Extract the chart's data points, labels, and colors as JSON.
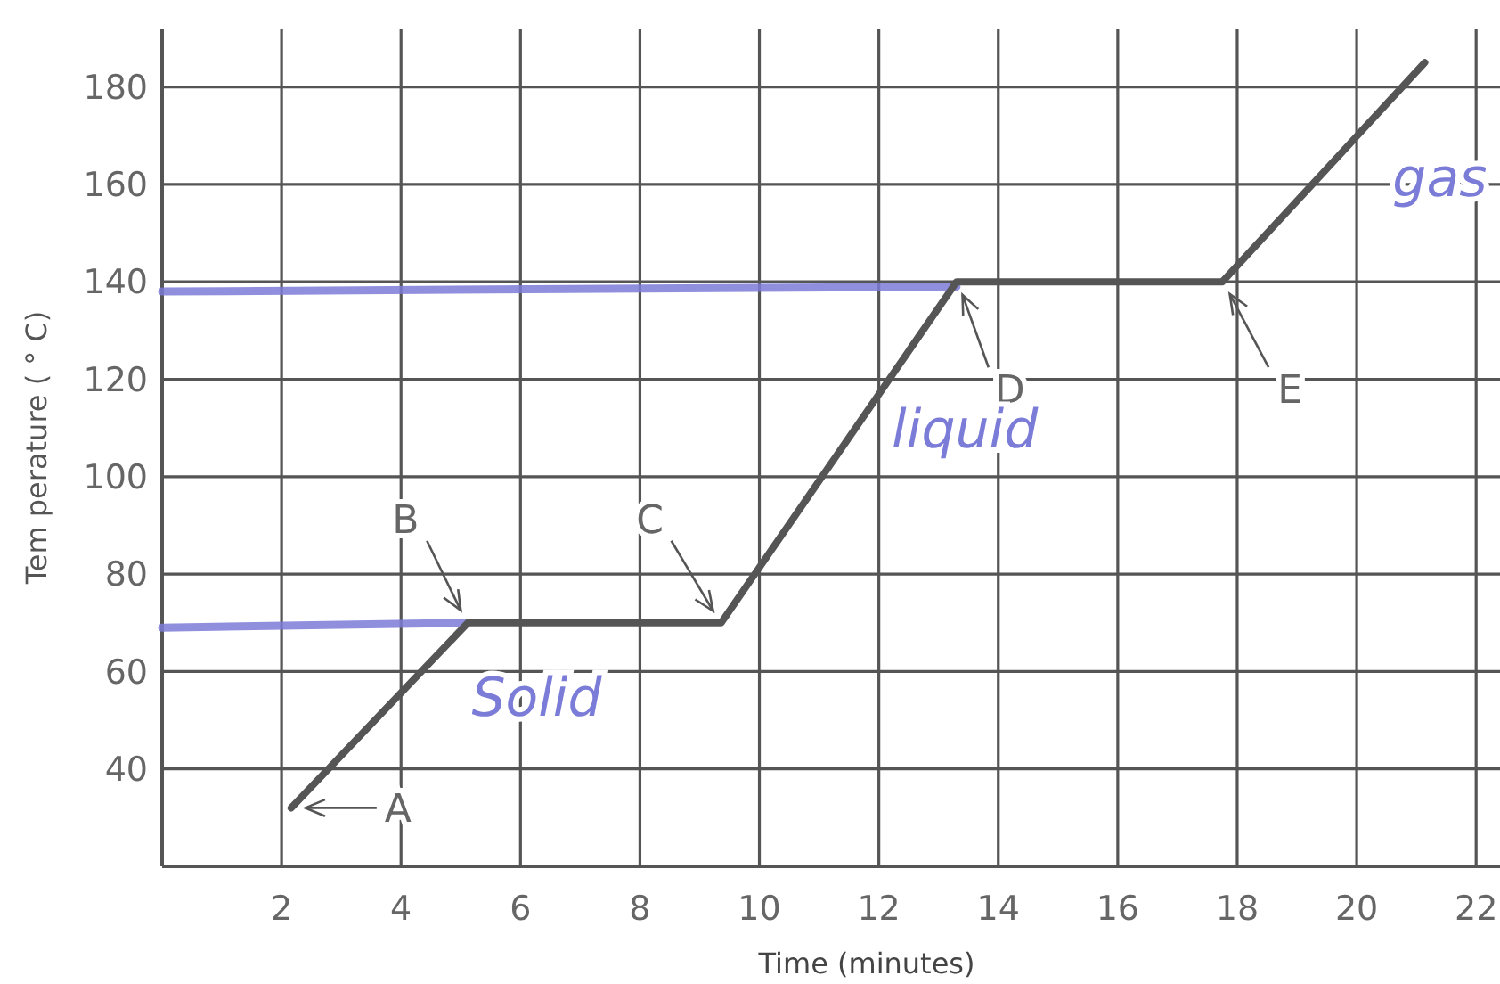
{
  "chart_data": {
    "type": "line",
    "xlabel": "Time (minutes)",
    "ylabel": "Tem perature ( ° C)",
    "xlim": [
      0,
      22.4
    ],
    "ylim": [
      20,
      192
    ],
    "xticks": [
      2,
      4,
      6,
      8,
      10,
      12,
      14,
      16,
      18,
      20,
      22
    ],
    "yticks": [
      40,
      60,
      80,
      100,
      120,
      140,
      160,
      180
    ],
    "grid": true,
    "marker": "none",
    "line_style": "solid",
    "series": [
      {
        "color": "#555555",
        "x": [
          2.16,
          5.12,
          9.36,
          13.3,
          17.75,
          21.14
        ],
        "values": [
          32,
          70,
          70,
          140,
          140,
          185
        ]
      },
      {
        "color": "#7b7bd8",
        "x": [
          0,
          5.12
        ],
        "values": [
          69,
          70
        ]
      },
      {
        "color": "#7b7bd8",
        "x": [
          0,
          13.3
        ],
        "values": [
          138,
          139
        ]
      }
    ],
    "annotations": [
      {
        "text": "A",
        "x": 2.16,
        "y": 32
      },
      {
        "text": "B",
        "x": 5.12,
        "y": 70
      },
      {
        "text": "C",
        "x": 9.36,
        "y": 70
      },
      {
        "text": "D",
        "x": 13.3,
        "y": 140
      },
      {
        "text": "E",
        "x": 17.75,
        "y": 140
      },
      "Solid",
      "liquid",
      "gas"
    ]
  }
}
